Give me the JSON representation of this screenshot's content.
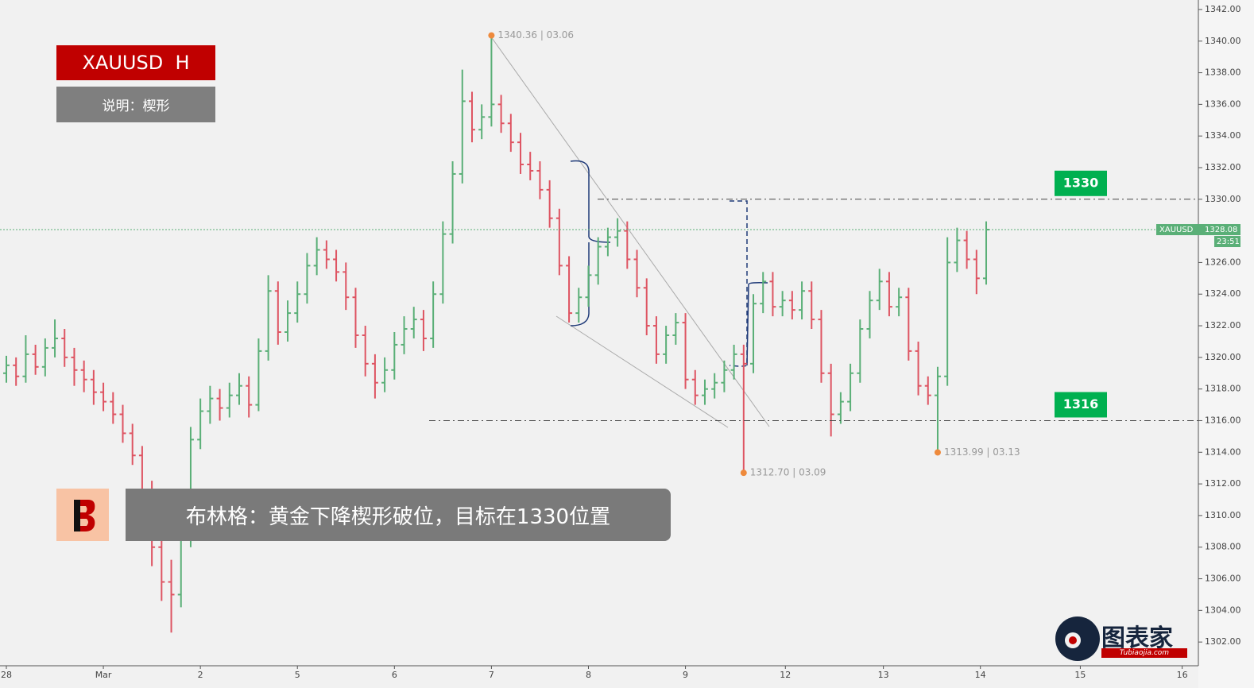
{
  "chart_data": {
    "type": "ohlc",
    "title": "XAUUSD  H",
    "subtitle": "说明：楔形",
    "caption": "布林格：黄金下降楔形破位，目标在1330位置",
    "brand": "图表家",
    "brand_url": "Tubiaojia.com",
    "up_color": "#5aaf77",
    "down_color": "#de5462",
    "x": [
      0,
      1,
      2,
      3,
      4,
      5,
      6,
      7,
      8,
      9,
      10,
      11,
      12,
      13,
      14,
      15,
      16,
      17,
      18,
      19,
      20,
      21,
      22,
      23,
      24,
      25,
      26,
      27,
      28,
      29,
      30,
      31,
      32,
      33,
      34,
      35,
      36,
      37,
      38,
      39,
      40,
      41,
      42,
      43,
      44,
      45,
      46,
      47,
      48,
      49,
      50,
      51,
      52,
      53,
      54,
      55,
      56,
      57,
      58,
      59,
      60,
      61,
      62,
      63,
      64,
      65,
      66,
      67,
      68,
      69,
      70,
      71,
      72,
      73,
      74,
      75,
      76,
      77,
      78,
      79,
      80,
      81,
      82,
      83,
      84,
      85,
      86,
      87,
      88,
      89,
      90,
      91,
      92,
      93,
      94,
      95,
      96,
      97,
      98,
      99,
      100,
      101
    ],
    "open": [
      1319.0,
      1319.5,
      1318.8,
      1320.2,
      1319.4,
      1320.6,
      1321.2,
      1320.0,
      1319.2,
      1318.6,
      1317.8,
      1317.2,
      1316.4,
      1315.2,
      1313.8,
      1311.5,
      1308.0,
      1305.8,
      1305.0,
      1308.6,
      1314.8,
      1316.6,
      1317.4,
      1316.8,
      1317.6,
      1318.2,
      1317.0,
      1320.4,
      1324.2,
      1321.6,
      1322.8,
      1324.0,
      1325.8,
      1326.8,
      1326.2,
      1325.4,
      1323.8,
      1321.4,
      1319.6,
      1318.4,
      1319.2,
      1320.8,
      1321.8,
      1322.4,
      1321.2,
      1324.0,
      1327.8,
      1331.6,
      1336.2,
      1334.4,
      1335.2,
      1336.0,
      1334.8,
      1333.6,
      1332.2,
      1331.8,
      1330.6,
      1328.8,
      1325.8,
      1322.8,
      1323.8,
      1325.2,
      1327.0,
      1327.6,
      1328.0,
      1326.2,
      1324.4,
      1322.0,
      1320.2,
      1321.4,
      1322.2,
      1318.6,
      1317.6,
      1318.0,
      1318.4,
      1319.2,
      1320.2,
      1319.6,
      1323.4,
      1324.8,
      1323.2,
      1323.6,
      1323.0,
      1324.2,
      1322.4,
      1319.0,
      1316.4,
      1317.2,
      1319.0,
      1321.8,
      1323.6,
      1324.8,
      1323.2,
      1323.8,
      1320.4,
      1318.2,
      1317.6,
      1318.8,
      1326.0,
      1327.4,
      1326.2,
      1325.0
    ],
    "high": [
      1320.1,
      1320.0,
      1321.4,
      1320.8,
      1321.2,
      1322.4,
      1321.8,
      1320.6,
      1319.8,
      1319.2,
      1318.4,
      1317.8,
      1317.0,
      1315.8,
      1314.4,
      1312.2,
      1308.8,
      1307.2,
      1309.4,
      1315.6,
      1317.4,
      1318.2,
      1318.0,
      1318.4,
      1319.0,
      1318.8,
      1321.2,
      1325.2,
      1324.8,
      1323.6,
      1324.8,
      1326.6,
      1327.6,
      1327.4,
      1326.8,
      1326.0,
      1324.4,
      1322.0,
      1320.2,
      1320.0,
      1321.6,
      1322.6,
      1323.2,
      1323.0,
      1324.8,
      1328.6,
      1332.4,
      1338.2,
      1336.8,
      1336.0,
      1340.36,
      1336.6,
      1335.4,
      1334.2,
      1333.0,
      1332.4,
      1331.2,
      1329.4,
      1326.4,
      1324.4,
      1325.8,
      1327.6,
      1328.2,
      1328.8,
      1328.6,
      1326.8,
      1325.0,
      1322.6,
      1322.0,
      1322.8,
      1322.8,
      1319.2,
      1318.6,
      1319.0,
      1319.8,
      1320.8,
      1320.8,
      1324.0,
      1325.4,
      1325.4,
      1324.2,
      1324.2,
      1324.8,
      1324.8,
      1323.0,
      1319.6,
      1317.8,
      1319.6,
      1322.4,
      1324.2,
      1325.6,
      1325.4,
      1324.4,
      1324.4,
      1321.0,
      1318.8,
      1319.4,
      1327.6,
      1328.2,
      1328.0,
      1326.8,
      1328.6
    ],
    "low": [
      1318.4,
      1318.2,
      1318.4,
      1318.9,
      1318.8,
      1320.0,
      1319.4,
      1318.2,
      1317.8,
      1317.0,
      1316.6,
      1315.8,
      1314.6,
      1313.2,
      1310.8,
      1306.8,
      1304.6,
      1302.6,
      1304.2,
      1308.0,
      1314.2,
      1315.8,
      1316.0,
      1316.2,
      1317.0,
      1316.2,
      1316.6,
      1319.8,
      1320.8,
      1321.0,
      1322.2,
      1323.4,
      1325.2,
      1325.6,
      1324.8,
      1323.0,
      1320.6,
      1318.8,
      1317.4,
      1317.8,
      1318.6,
      1320.2,
      1321.2,
      1320.4,
      1320.6,
      1323.4,
      1327.2,
      1331.0,
      1333.6,
      1333.8,
      1334.6,
      1334.2,
      1333.0,
      1331.6,
      1331.2,
      1330.0,
      1328.2,
      1325.2,
      1322.2,
      1322.2,
      1323.2,
      1324.6,
      1326.4,
      1327.0,
      1325.6,
      1323.8,
      1321.4,
      1319.6,
      1319.6,
      1320.8,
      1318.0,
      1317.0,
      1317.0,
      1317.4,
      1317.8,
      1318.6,
      1312.7,
      1319.0,
      1322.8,
      1322.6,
      1322.6,
      1322.4,
      1322.4,
      1321.8,
      1318.4,
      1315.0,
      1315.8,
      1316.6,
      1318.4,
      1321.2,
      1323.0,
      1322.6,
      1322.6,
      1319.8,
      1317.6,
      1317.0,
      1313.99,
      1318.2,
      1325.4,
      1325.6,
      1324.0,
      1324.6
    ],
    "close": [
      1319.5,
      1318.8,
      1320.2,
      1319.4,
      1320.6,
      1321.2,
      1320.0,
      1319.2,
      1318.6,
      1317.8,
      1317.2,
      1316.4,
      1315.2,
      1313.8,
      1311.5,
      1308.0,
      1305.8,
      1305.0,
      1308.6,
      1314.8,
      1316.6,
      1317.4,
      1316.8,
      1317.6,
      1318.2,
      1317.0,
      1320.4,
      1324.2,
      1321.6,
      1322.8,
      1324.0,
      1325.8,
      1326.8,
      1326.2,
      1325.4,
      1323.8,
      1321.4,
      1319.6,
      1318.4,
      1319.2,
      1320.8,
      1321.8,
      1322.4,
      1321.2,
      1324.0,
      1327.8,
      1331.6,
      1336.2,
      1334.4,
      1335.2,
      1336.0,
      1334.8,
      1333.6,
      1332.2,
      1331.8,
      1330.6,
      1328.8,
      1325.8,
      1322.8,
      1323.8,
      1325.2,
      1327.0,
      1327.6,
      1328.0,
      1326.2,
      1324.4,
      1322.0,
      1320.2,
      1321.4,
      1322.2,
      1318.6,
      1317.6,
      1318.0,
      1318.4,
      1319.2,
      1320.2,
      1319.6,
      1323.4,
      1324.8,
      1323.2,
      1323.6,
      1323.0,
      1324.2,
      1322.4,
      1319.0,
      1316.4,
      1317.2,
      1319.0,
      1321.8,
      1323.6,
      1324.8,
      1323.2,
      1323.8,
      1320.4,
      1318.2,
      1317.6,
      1318.8,
      1326.0,
      1327.4,
      1326.2,
      1325.0,
      1328.08
    ],
    "xlim": [
      -0.655,
      122.87
    ],
    "xticks": [
      {
        "value": 0,
        "label": "28"
      },
      {
        "value": 10,
        "label": "Mar"
      },
      {
        "value": 20,
        "label": "2"
      },
      {
        "value": 30,
        "label": "5"
      },
      {
        "value": 40,
        "label": "6"
      },
      {
        "value": 50,
        "label": "7"
      },
      {
        "value": 60,
        "label": "8"
      },
      {
        "value": 70,
        "label": "9"
      },
      {
        "value": 80.3,
        "label": "12"
      },
      {
        "value": 90.4,
        "label": "13"
      },
      {
        "value": 100.4,
        "label": "14"
      },
      {
        "value": 110.7,
        "label": "15"
      },
      {
        "value": 121.2,
        "label": "16"
      }
    ],
    "ylim": [
      1300.5,
      1342.6
    ],
    "yticks": [
      {
        "value": 1302,
        "label": "1302.00"
      },
      {
        "value": 1304,
        "label": "1304.00"
      },
      {
        "value": 1306,
        "label": "1306.00"
      },
      {
        "value": 1308,
        "label": "1308.00"
      },
      {
        "value": 1310,
        "label": "1310.00"
      },
      {
        "value": 1312,
        "label": "1312.00"
      },
      {
        "value": 1314,
        "label": "1314.00"
      },
      {
        "value": 1316,
        "label": "1316.00"
      },
      {
        "value": 1318,
        "label": "1318.00"
      },
      {
        "value": 1320,
        "label": "1320.00"
      },
      {
        "value": 1322,
        "label": "1322.00"
      },
      {
        "value": 1324,
        "label": "1324.00"
      },
      {
        "value": 1326,
        "label": "1326.00"
      },
      {
        "value": 1328,
        "label": "1328.00"
      },
      {
        "value": 1330,
        "label": "1330.00"
      },
      {
        "value": 1332,
        "label": "1332.00"
      },
      {
        "value": 1334,
        "label": "1334.00"
      },
      {
        "value": 1336,
        "label": "1336.00"
      },
      {
        "value": 1338,
        "label": "1338.00"
      },
      {
        "value": 1340,
        "label": "1340.00"
      },
      {
        "value": 1342,
        "label": "1342.00"
      }
    ],
    "levels": [
      1330,
      1316
    ],
    "level_color": "#00b050",
    "last_price": {
      "symbol": "XAUUSD",
      "value": 1328.08,
      "timer": "23:51"
    },
    "annotations": [
      {
        "x": 50,
        "y": 1340.36,
        "text": "1340.36 | 03.06"
      },
      {
        "x": 76,
        "y": 1312.7,
        "text": "1312.70 | 03.09"
      },
      {
        "x": 96,
        "y": 1313.99,
        "text": "1313.99 | 03.13"
      }
    ]
  }
}
